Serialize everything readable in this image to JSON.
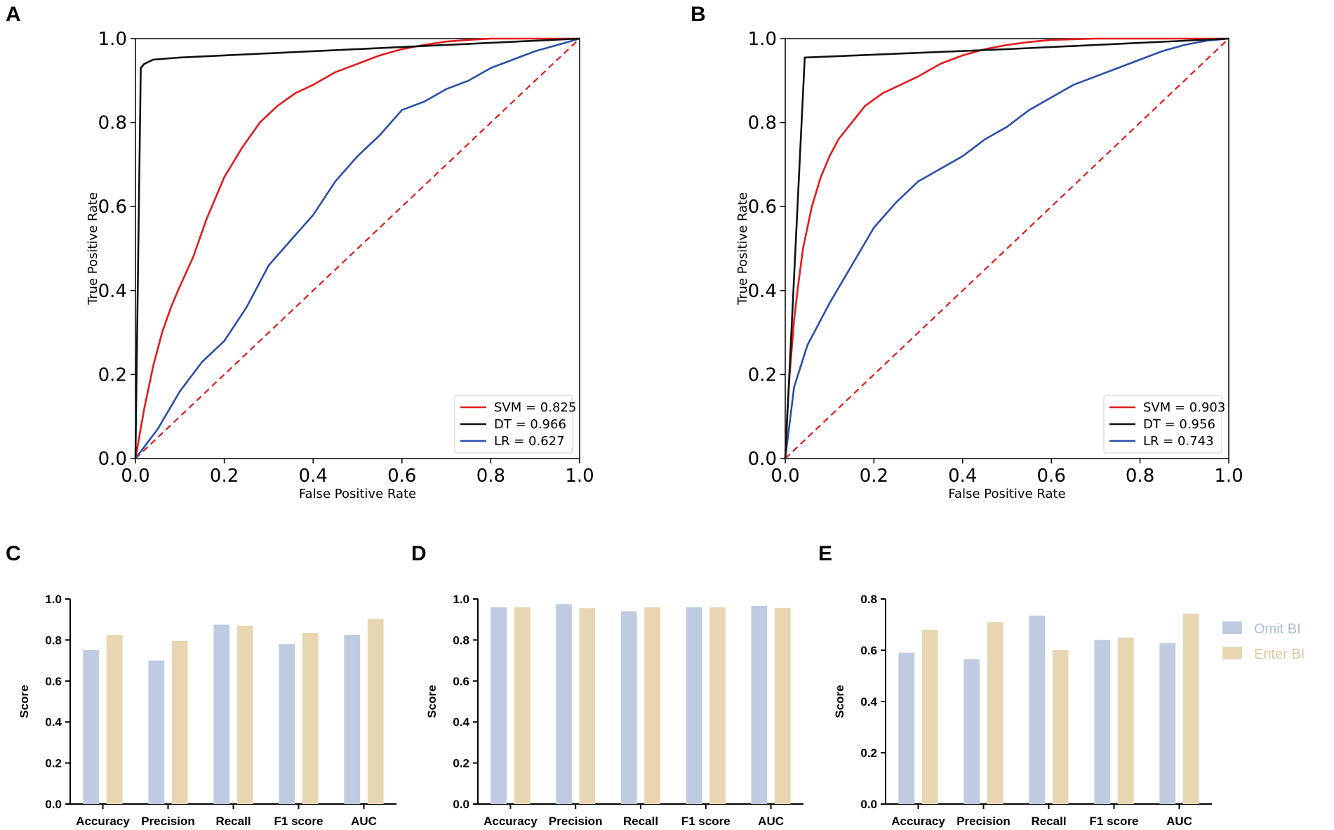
{
  "colors": {
    "svm": "#e31a1c",
    "dt": "#111111",
    "lr": "#2a4fa8",
    "diagonal": "#e31a1c",
    "omit_bi": "#bfcbe0",
    "enter_bi": "#e8d6b2",
    "omit_bi_text": "#aebcd8",
    "enter_bi_text": "#dcc79c"
  },
  "chart_data": [
    {
      "panel": "A",
      "type": "line",
      "xlabel": "False Positive Rate",
      "ylabel": "True Positive Rate",
      "xlim": [
        0,
        1
      ],
      "ylim": [
        0,
        1
      ],
      "xticks": [
        "0.0",
        "0.2",
        "0.4",
        "0.6",
        "0.8",
        "1.0"
      ],
      "yticks": [
        "0.0",
        "0.2",
        "0.4",
        "0.6",
        "0.8",
        "1.0"
      ],
      "legend_position": "lower-right",
      "legend": [
        "SVM = 0.825",
        "DT = 0.966",
        "LR = 0.627"
      ],
      "series": [
        {
          "name": "SVM",
          "color_key": "svm",
          "x": [
            0,
            0.01,
            0.02,
            0.04,
            0.06,
            0.08,
            0.1,
            0.13,
            0.16,
            0.2,
            0.24,
            0.28,
            0.32,
            0.36,
            0.4,
            0.45,
            0.5,
            0.55,
            0.6,
            0.65,
            0.7,
            0.75,
            0.8,
            0.9,
            1.0
          ],
          "y": [
            0,
            0.06,
            0.12,
            0.22,
            0.3,
            0.36,
            0.41,
            0.48,
            0.57,
            0.67,
            0.74,
            0.8,
            0.84,
            0.87,
            0.89,
            0.92,
            0.94,
            0.96,
            0.975,
            0.985,
            0.993,
            0.997,
            1.0,
            1.0,
            1.0
          ]
        },
        {
          "name": "DT",
          "color_key": "dt",
          "x": [
            0,
            0.012,
            0.02,
            0.04,
            0.1,
            1.0
          ],
          "y": [
            0,
            0.93,
            0.94,
            0.95,
            0.955,
            1.0
          ]
        },
        {
          "name": "LR",
          "color_key": "lr",
          "x": [
            0,
            0.05,
            0.1,
            0.15,
            0.2,
            0.25,
            0.3,
            0.35,
            0.4,
            0.45,
            0.5,
            0.55,
            0.6,
            0.65,
            0.7,
            0.75,
            0.8,
            0.85,
            0.9,
            0.95,
            1.0
          ],
          "y": [
            0,
            0.07,
            0.16,
            0.23,
            0.28,
            0.36,
            0.46,
            0.52,
            0.58,
            0.66,
            0.72,
            0.77,
            0.83,
            0.85,
            0.88,
            0.9,
            0.93,
            0.95,
            0.97,
            0.985,
            1.0
          ]
        },
        {
          "name": "chance",
          "color_key": "diagonal",
          "dashed": true,
          "x": [
            0,
            1
          ],
          "y": [
            0,
            1
          ]
        }
      ]
    },
    {
      "panel": "B",
      "type": "line",
      "xlabel": "False Positive Rate",
      "ylabel": "True Positive Rate",
      "xlim": [
        0,
        1
      ],
      "ylim": [
        0,
        1
      ],
      "xticks": [
        "0.0",
        "0.2",
        "0.4",
        "0.6",
        "0.8",
        "1.0"
      ],
      "yticks": [
        "0.0",
        "0.2",
        "0.4",
        "0.6",
        "0.8",
        "1.0"
      ],
      "legend_position": "lower-right",
      "legend": [
        "SVM = 0.903",
        "DT = 0.956",
        "LR = 0.743"
      ],
      "series": [
        {
          "name": "SVM",
          "color_key": "svm",
          "x": [
            0,
            0.005,
            0.01,
            0.02,
            0.03,
            0.04,
            0.06,
            0.08,
            0.1,
            0.12,
            0.15,
            0.18,
            0.22,
            0.26,
            0.3,
            0.35,
            0.4,
            0.45,
            0.5,
            0.55,
            0.6,
            0.7,
            0.8,
            0.9,
            1.0
          ],
          "y": [
            0,
            0.12,
            0.2,
            0.33,
            0.42,
            0.5,
            0.6,
            0.67,
            0.72,
            0.76,
            0.8,
            0.84,
            0.87,
            0.89,
            0.91,
            0.94,
            0.96,
            0.975,
            0.985,
            0.992,
            0.997,
            1.0,
            1.0,
            1.0,
            1.0
          ]
        },
        {
          "name": "DT",
          "color_key": "dt",
          "x": [
            0,
            0.044,
            0.5,
            1.0
          ],
          "y": [
            0,
            0.955,
            0.975,
            1.0
          ]
        },
        {
          "name": "LR",
          "color_key": "lr",
          "x": [
            0,
            0.02,
            0.05,
            0.1,
            0.15,
            0.2,
            0.25,
            0.3,
            0.35,
            0.4,
            0.45,
            0.5,
            0.55,
            0.6,
            0.65,
            0.7,
            0.75,
            0.8,
            0.85,
            0.9,
            0.95,
            1.0
          ],
          "y": [
            0,
            0.17,
            0.27,
            0.37,
            0.46,
            0.55,
            0.61,
            0.66,
            0.69,
            0.72,
            0.76,
            0.79,
            0.83,
            0.86,
            0.89,
            0.91,
            0.93,
            0.95,
            0.97,
            0.985,
            0.995,
            1.0
          ]
        },
        {
          "name": "chance",
          "color_key": "diagonal",
          "dashed": true,
          "x": [
            0,
            1
          ],
          "y": [
            0,
            1
          ]
        }
      ]
    },
    {
      "panel": "C",
      "type": "bar",
      "ylabel": "Score",
      "ylim": [
        0,
        1.0
      ],
      "yticks": [
        "0.0",
        "0.2",
        "0.4",
        "0.6",
        "0.8",
        "1.0"
      ],
      "categories": [
        "Accuracy",
        "Precision",
        "Recall",
        "F1 score",
        "AUC"
      ],
      "series": [
        {
          "name": "Omit BI",
          "color_key": "omit_bi",
          "values": [
            0.75,
            0.7,
            0.875,
            0.78,
            0.825
          ]
        },
        {
          "name": "Enter BI",
          "color_key": "enter_bi",
          "values": [
            0.825,
            0.795,
            0.87,
            0.835,
            0.903
          ]
        }
      ]
    },
    {
      "panel": "D",
      "type": "bar",
      "ylabel": "Score",
      "ylim": [
        0,
        1.0
      ],
      "yticks": [
        "0.0",
        "0.2",
        "0.4",
        "0.6",
        "0.8",
        "1.0"
      ],
      "categories": [
        "Accuracy",
        "Precision",
        "Recall",
        "F1 score",
        "AUC"
      ],
      "series": [
        {
          "name": "Omit BI",
          "color_key": "omit_bi",
          "values": [
            0.96,
            0.975,
            0.94,
            0.96,
            0.966
          ]
        },
        {
          "name": "Enter BI",
          "color_key": "enter_bi",
          "values": [
            0.96,
            0.955,
            0.96,
            0.96,
            0.956
          ]
        }
      ]
    },
    {
      "panel": "E",
      "type": "bar",
      "ylabel": "Score",
      "ylim": [
        0,
        0.8
      ],
      "yticks": [
        "0.0",
        "0.2",
        "0.4",
        "0.6",
        "0.8"
      ],
      "categories": [
        "Accuracy",
        "Precision",
        "Recall",
        "F1 score",
        "AUC"
      ],
      "legend_position": "right",
      "legend": [
        "Omit BI",
        "Enter BI"
      ],
      "series": [
        {
          "name": "Omit BI",
          "color_key": "omit_bi",
          "values": [
            0.59,
            0.565,
            0.735,
            0.64,
            0.627
          ]
        },
        {
          "name": "Enter BI",
          "color_key": "enter_bi",
          "values": [
            0.68,
            0.71,
            0.6,
            0.65,
            0.743
          ]
        }
      ]
    }
  ]
}
